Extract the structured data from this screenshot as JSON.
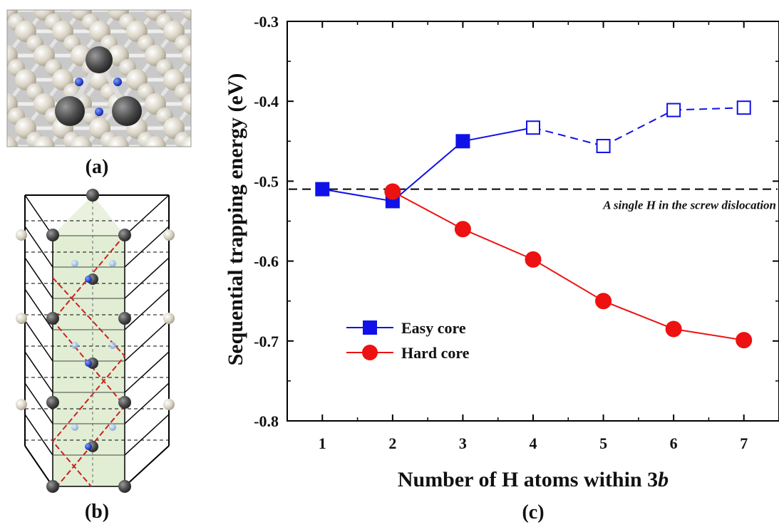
{
  "panels": {
    "a_label": "(a)",
    "b_label": "(b)",
    "c_label": "(c)"
  },
  "chart_data": {
    "type": "line",
    "title": "",
    "xlabel_prefix": "Number of H atoms within 3",
    "xlabel_italic": "b",
    "ylabel": "Sequential trapping energy (eV)",
    "xlim": [
      0.5,
      7.5
    ],
    "ylim": [
      -0.8,
      -0.3
    ],
    "x_ticks": [
      1,
      2,
      3,
      4,
      5,
      6,
      7
    ],
    "y_ticks": [
      -0.8,
      -0.7,
      -0.6,
      -0.5,
      -0.4,
      -0.3
    ],
    "grid": false,
    "legend_position": "lower-left",
    "reference_line": {
      "y": -0.51,
      "label": "A single H in the screw dislocation",
      "style": "dashed",
      "color": "#000000"
    },
    "series": [
      {
        "name": "Easy core",
        "color": "#1010e8",
        "marker": "square",
        "points": [
          {
            "x": 1,
            "y": -0.51,
            "filled": true
          },
          {
            "x": 2,
            "y": -0.525,
            "filled": true
          },
          {
            "x": 3,
            "y": -0.45,
            "filled": true
          },
          {
            "x": 4,
            "y": -0.433,
            "filled": false
          },
          {
            "x": 5,
            "y": -0.456,
            "filled": false
          },
          {
            "x": 6,
            "y": -0.411,
            "filled": false
          },
          {
            "x": 7,
            "y": -0.408,
            "filled": false
          }
        ],
        "solid_until_x": 4
      },
      {
        "name": "Hard core",
        "color": "#ee1111",
        "marker": "circle",
        "points": [
          {
            "x": 2,
            "y": -0.513,
            "filled": true
          },
          {
            "x": 3,
            "y": -0.56,
            "filled": true
          },
          {
            "x": 4,
            "y": -0.598,
            "filled": true
          },
          {
            "x": 5,
            "y": -0.65,
            "filled": true
          },
          {
            "x": 6,
            "y": -0.685,
            "filled": true
          },
          {
            "x": 7,
            "y": -0.699,
            "filled": true
          }
        ],
        "solid_until_x": 7
      }
    ]
  }
}
